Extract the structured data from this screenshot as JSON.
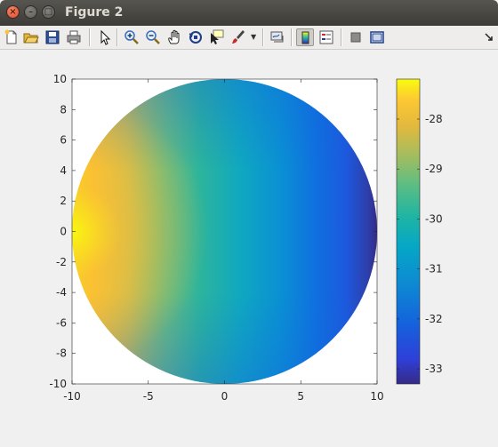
{
  "window": {
    "title": "Figure 2"
  },
  "toolbar": {
    "buttons": [
      {
        "name": "new-figure-icon"
      },
      {
        "name": "open-file-icon"
      },
      {
        "name": "save-figure-icon"
      },
      {
        "name": "print-figure-icon"
      },
      {
        "name": "edit-plot-icon"
      },
      {
        "name": "zoom-in-icon"
      },
      {
        "name": "zoom-out-icon"
      },
      {
        "name": "pan-icon"
      },
      {
        "name": "rotate-3d-icon"
      },
      {
        "name": "data-cursor-icon"
      },
      {
        "name": "brush-icon"
      },
      {
        "name": "link-plot-icon"
      },
      {
        "name": "insert-colorbar-icon"
      },
      {
        "name": "insert-legend-icon"
      },
      {
        "name": "hide-plot-tools-icon"
      },
      {
        "name": "show-plot-tools-icon"
      },
      {
        "name": "dock-figure-icon"
      }
    ],
    "active_button": "insert-colorbar-icon"
  },
  "chart_data": {
    "type": "heatmap",
    "shape": "disk",
    "colormap": "parula",
    "xlim": [
      -10,
      10
    ],
    "ylim": [
      -10,
      10
    ],
    "xticks": [
      "-10",
      "-5",
      "0",
      "5",
      "10"
    ],
    "yticks": [
      "10",
      "8",
      "6",
      "4",
      "2",
      "0",
      "-2",
      "-4",
      "-6",
      "-8",
      "-10"
    ],
    "colorbar": {
      "range": [
        -33.3,
        -27.2
      ],
      "ticks": [
        "-28",
        "-29",
        "-30",
        "-31",
        "-32",
        "-33"
      ]
    },
    "max_at": [
      -10,
      0
    ],
    "min_at": [
      10,
      0
    ]
  }
}
